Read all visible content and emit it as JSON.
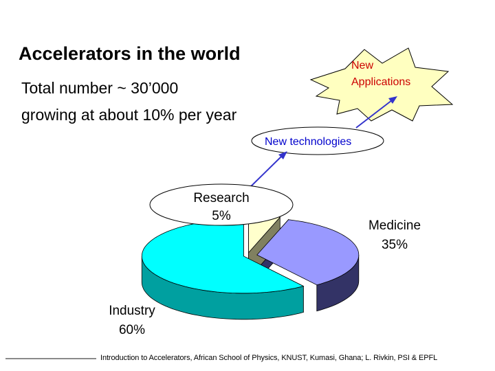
{
  "slide": {
    "title": "Accelerators in the world",
    "line1": "Total number ~ 30’000",
    "line2": "growing at about 10% per year",
    "starburst_label": [
      "New",
      "Applications"
    ],
    "technologies_label": "New technologies",
    "footer": "Introduction to Accelerators, African School of Physics, KNUST, Kumasi, Ghana; L. Rivkin, PSI & EPFL"
  },
  "colors": {
    "starburst_fill": "#ffffc0",
    "starburst_text": "#cc0000",
    "technologies_text": "#0000cc",
    "arrow": "#3333cc"
  },
  "chart_data": {
    "type": "pie",
    "style": "3d-exploded",
    "slices": [
      {
        "label": "Research",
        "value": 5,
        "display": "5%",
        "color": "#ffffcc",
        "side": "#808060"
      },
      {
        "label": "Medicine",
        "value": 35,
        "display": "35%",
        "color": "#9999ff",
        "side": "#333366"
      },
      {
        "label": "Industry",
        "value": 60,
        "display": "60%",
        "color": "#00ffff",
        "side": "#00a0a0"
      }
    ]
  }
}
